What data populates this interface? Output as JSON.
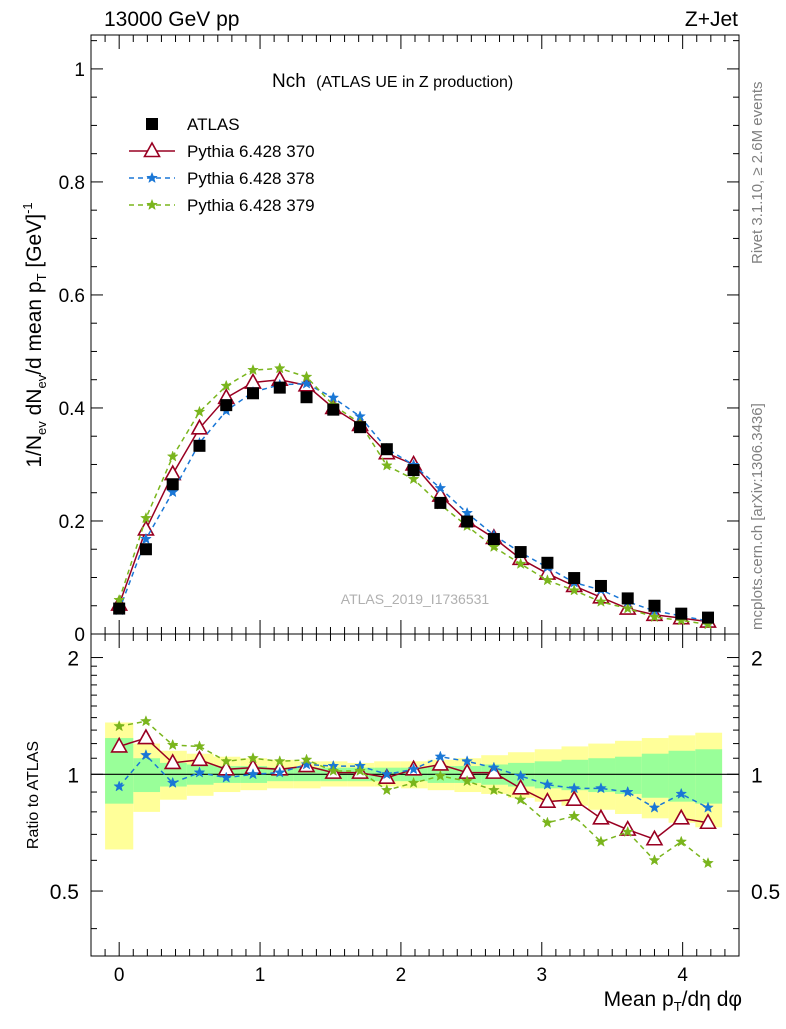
{
  "header": {
    "left": "13000 GeV pp",
    "right": "Z+Jet"
  },
  "plot": {
    "title_main": "Nch",
    "title_sub": "(ATLAS UE in Z production)"
  },
  "labels": {
    "y_main": "1/N",
    "y_main_ev": "ev",
    "y_main_mid": " dN",
    "y_main_ev2": "ev",
    "y_main_rest": "/d mean p",
    "y_main_T": "T",
    "y_main_unit": " [GeV]",
    "y_main_exp": "-1",
    "y_ratio": "Ratio to ATLAS",
    "x_label": "Mean p",
    "x_label_T": "T",
    "x_label_rest": "/dη dφ",
    "watermark": "ATLAS_2019_I1736531",
    "side_top": "Rivet 3.1.10, ≥ 2.6M events",
    "side_bottom": "mcplots.cern.ch [arXiv:1306.3436]"
  },
  "legend": [
    {
      "label": "ATLAS",
      "color": "#000000",
      "marker": "square"
    },
    {
      "label": "Pythia 6.428 370",
      "color": "#990022",
      "marker": "triangle"
    },
    {
      "label": "Pythia 6.428 378",
      "color": "#1a77d6",
      "marker": "star"
    },
    {
      "label": "Pythia 6.428 379",
      "color": "#7ab51d",
      "marker": "star"
    }
  ],
  "chart_data": [
    {
      "type": "scatter",
      "panel": "main",
      "xlim": [
        -0.2,
        4.4
      ],
      "ylim": [
        0,
        1.06
      ],
      "y_ticks": [
        0,
        0.2,
        0.4,
        0.6,
        0.8,
        1
      ],
      "x": [
        0,
        0.19,
        0.38,
        0.57,
        0.76,
        0.95,
        1.14,
        1.33,
        1.52,
        1.71,
        1.9,
        2.09,
        2.28,
        2.47,
        2.66,
        2.85,
        3.04,
        3.23,
        3.42,
        3.61,
        3.8,
        3.99,
        4.18
      ],
      "series": [
        {
          "name": "ATLAS",
          "color": "#000000",
          "values": [
            0.045,
            0.15,
            0.265,
            0.333,
            0.405,
            0.426,
            0.436,
            0.419,
            0.397,
            0.366,
            0.327,
            0.29,
            0.232,
            0.199,
            0.168,
            0.145,
            0.126,
            0.099,
            0.085,
            0.063,
            0.05,
            0.036,
            0.029
          ]
        },
        {
          "name": "Pythia 6.428 370",
          "color": "#990022",
          "values": [
            0.052,
            0.185,
            0.283,
            0.364,
            0.418,
            0.445,
            0.45,
            0.44,
            0.4,
            0.37,
            0.32,
            0.3,
            0.245,
            0.2,
            0.17,
            0.133,
            0.107,
            0.085,
            0.065,
            0.045,
            0.034,
            0.028,
            0.022
          ]
        },
        {
          "name": "Pythia 6.428 378",
          "color": "#1a77d6",
          "values": [
            0.042,
            0.168,
            0.251,
            0.338,
            0.395,
            0.428,
            0.441,
            0.443,
            0.418,
            0.385,
            0.328,
            0.299,
            0.258,
            0.214,
            0.175,
            0.144,
            0.118,
            0.091,
            0.078,
            0.057,
            0.041,
            0.032,
            0.023
          ]
        },
        {
          "name": "Pythia 6.428 379",
          "color": "#7ab51d",
          "values": [
            0.06,
            0.205,
            0.314,
            0.393,
            0.439,
            0.467,
            0.47,
            0.455,
            0.405,
            0.373,
            0.298,
            0.274,
            0.229,
            0.191,
            0.154,
            0.124,
            0.095,
            0.077,
            0.057,
            0.045,
            0.03,
            0.024,
            0.017
          ]
        }
      ]
    },
    {
      "type": "scatter",
      "panel": "ratio",
      "xlim": [
        -0.2,
        4.4
      ],
      "ylim": [
        0.34,
        2.3
      ],
      "y_ticks": [
        0.5,
        1,
        2
      ],
      "x_ticks": [
        0,
        1,
        2,
        3,
        4
      ],
      "reference": 1,
      "band_edges": [
        -0.1,
        0.1,
        0.29,
        0.48,
        0.67,
        0.86,
        1.05,
        1.24,
        1.43,
        1.62,
        1.81,
        2.0,
        2.19,
        2.38,
        2.57,
        2.76,
        2.95,
        3.14,
        3.33,
        3.52,
        3.71,
        3.9,
        4.09,
        4.28
      ],
      "band_inner_high": [
        1.24,
        1.1,
        1.07,
        1.06,
        1.05,
        1.05,
        1.04,
        1.04,
        1.04,
        1.04,
        1.04,
        1.04,
        1.05,
        1.05,
        1.06,
        1.07,
        1.08,
        1.09,
        1.1,
        1.11,
        1.13,
        1.15,
        1.16
      ],
      "band_inner_low": [
        0.84,
        0.9,
        0.93,
        0.94,
        0.95,
        0.95,
        0.96,
        0.96,
        0.96,
        0.96,
        0.96,
        0.96,
        0.95,
        0.95,
        0.94,
        0.93,
        0.92,
        0.91,
        0.9,
        0.89,
        0.87,
        0.85,
        0.84
      ],
      "band_outer_high": [
        1.36,
        1.2,
        1.15,
        1.13,
        1.11,
        1.1,
        1.09,
        1.08,
        1.08,
        1.07,
        1.08,
        1.08,
        1.09,
        1.1,
        1.12,
        1.14,
        1.16,
        1.18,
        1.2,
        1.22,
        1.24,
        1.26,
        1.28
      ],
      "band_outer_low": [
        0.64,
        0.8,
        0.86,
        0.88,
        0.9,
        0.91,
        0.92,
        0.92,
        0.93,
        0.93,
        0.93,
        0.92,
        0.91,
        0.9,
        0.89,
        0.87,
        0.85,
        0.83,
        0.81,
        0.79,
        0.77,
        0.75,
        0.73
      ],
      "x": [
        0,
        0.19,
        0.38,
        0.57,
        0.76,
        0.95,
        1.14,
        1.33,
        1.52,
        1.71,
        1.9,
        2.09,
        2.28,
        2.47,
        2.66,
        2.85,
        3.04,
        3.23,
        3.42,
        3.61,
        3.8,
        3.99,
        4.18
      ],
      "series": [
        {
          "name": "Pythia 6.428 370",
          "color": "#990022",
          "values": [
            1.18,
            1.24,
            1.07,
            1.09,
            1.03,
            1.04,
            1.03,
            1.05,
            1.01,
            1.01,
            0.98,
            1.03,
            1.06,
            1.01,
            1.01,
            0.92,
            0.85,
            0.86,
            0.77,
            0.72,
            0.68,
            0.77,
            0.75
          ]
        },
        {
          "name": "Pythia 6.428 378",
          "color": "#1a77d6",
          "values": [
            0.93,
            1.12,
            0.95,
            1.01,
            0.98,
            1.0,
            1.01,
            1.06,
            1.05,
            1.05,
            1.0,
            1.03,
            1.11,
            1.08,
            1.04,
            0.99,
            0.94,
            0.92,
            0.92,
            0.9,
            0.82,
            0.89,
            0.82
          ]
        },
        {
          "name": "Pythia 6.428 379",
          "color": "#7ab51d",
          "values": [
            1.33,
            1.37,
            1.19,
            1.18,
            1.08,
            1.1,
            1.08,
            1.09,
            1.02,
            1.02,
            0.91,
            0.95,
            0.99,
            0.96,
            0.91,
            0.86,
            0.75,
            0.78,
            0.67,
            0.71,
            0.6,
            0.67,
            0.59
          ]
        }
      ]
    }
  ]
}
